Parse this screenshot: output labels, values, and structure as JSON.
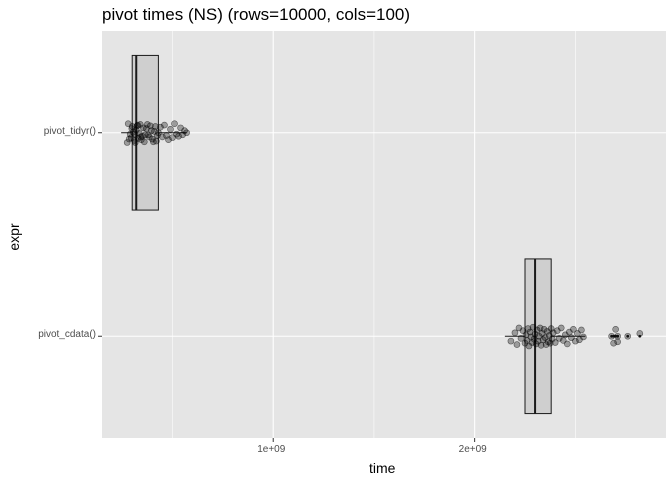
{
  "chart_data": {
    "type": "boxplot",
    "title": "pivot times (NS) (rows=10000, cols=100)",
    "xlabel": "time",
    "ylabel": "expr",
    "xlim": [
      150000000,
      2950000000
    ],
    "x_ticks": [
      {
        "value": 1000000000,
        "label": "1e+09"
      },
      {
        "value": 2000000000,
        "label": "2e+09"
      }
    ],
    "grid": true,
    "categories": [
      "pivot_tidyr()",
      "pivot_cdata()"
    ],
    "series": [
      {
        "category": "pivot_tidyr()",
        "box": {
          "whisker_low": 245000000,
          "q1": 300000000,
          "median": 320000000,
          "q3": 430000000,
          "whisker_high": 570000000
        },
        "points": [
          [
            275000000,
            0.14
          ],
          [
            290000000,
            0.02
          ],
          [
            300000000,
            -0.09
          ],
          [
            310000000,
            0.11
          ],
          [
            320000000,
            -0.04
          ],
          [
            330000000,
            0.08
          ],
          [
            340000000,
            -0.12
          ],
          [
            350000000,
            0.05
          ],
          [
            360000000,
            0.13
          ],
          [
            370000000,
            -0.06
          ],
          [
            380000000,
            0.03
          ],
          [
            390000000,
            -0.1
          ],
          [
            400000000,
            0.09
          ],
          [
            410000000,
            -0.02
          ],
          [
            420000000,
            0.12
          ],
          [
            430000000,
            0.0
          ],
          [
            440000000,
            -0.08
          ],
          [
            450000000,
            0.06
          ],
          [
            460000000,
            -0.11
          ],
          [
            470000000,
            0.04
          ],
          [
            480000000,
            0.1
          ],
          [
            490000000,
            -0.05
          ],
          [
            500000000,
            0.07
          ],
          [
            510000000,
            -0.13
          ],
          [
            520000000,
            0.02
          ],
          [
            530000000,
            0.05
          ],
          [
            540000000,
            -0.07
          ],
          [
            550000000,
            0.03
          ],
          [
            560000000,
            -0.03
          ],
          [
            570000000,
            0.0
          ],
          [
            280000000,
            -0.13
          ],
          [
            295000000,
            0.07
          ],
          [
            305000000,
            -0.01
          ],
          [
            315000000,
            0.14
          ],
          [
            325000000,
            -0.1
          ],
          [
            335000000,
            0.01
          ],
          [
            345000000,
            0.1
          ],
          [
            355000000,
            -0.07
          ],
          [
            365000000,
            0.03
          ],
          [
            375000000,
            -0.12
          ],
          [
            385000000,
            0.06
          ],
          [
            395000000,
            -0.03
          ],
          [
            405000000,
            0.13
          ],
          [
            415000000,
            -0.09
          ],
          [
            425000000,
            0.04
          ],
          [
            285000000,
            0.09
          ],
          [
            298000000,
            -0.06
          ],
          [
            312000000,
            0.02
          ],
          [
            327000000,
            -0.11
          ],
          [
            342000000,
            0.06
          ]
        ],
        "outliers": []
      },
      {
        "category": "pivot_cdata()",
        "box": {
          "whisker_low": 2150000000,
          "q1": 2250000000,
          "median": 2300000000,
          "q3": 2380000000,
          "whisker_high": 2550000000
        },
        "points": [
          [
            2180000000,
            0.07
          ],
          [
            2200000000,
            -0.05
          ],
          [
            2210000000,
            0.12
          ],
          [
            2220000000,
            -0.12
          ],
          [
            2230000000,
            0.03
          ],
          [
            2240000000,
            -0.08
          ],
          [
            2250000000,
            0.1
          ],
          [
            2255000000,
            -0.02
          ],
          [
            2260000000,
            0.06
          ],
          [
            2265000000,
            -0.11
          ],
          [
            2270000000,
            0.14
          ],
          [
            2275000000,
            -0.06
          ],
          [
            2280000000,
            0.01
          ],
          [
            2285000000,
            0.09
          ],
          [
            2290000000,
            -0.13
          ],
          [
            2295000000,
            0.04
          ],
          [
            2300000000,
            -0.03
          ],
          [
            2305000000,
            0.11
          ],
          [
            2310000000,
            -0.09
          ],
          [
            2315000000,
            0.07
          ],
          [
            2320000000,
            0.0
          ],
          [
            2325000000,
            -0.12
          ],
          [
            2330000000,
            0.13
          ],
          [
            2335000000,
            -0.04
          ],
          [
            2340000000,
            0.05
          ],
          [
            2345000000,
            -0.1
          ],
          [
            2350000000,
            0.02
          ],
          [
            2355000000,
            0.12
          ],
          [
            2360000000,
            -0.07
          ],
          [
            2365000000,
            0.08
          ],
          [
            2370000000,
            -0.01
          ],
          [
            2375000000,
            0.1
          ],
          [
            2380000000,
            -0.11
          ],
          [
            2385000000,
            0.04
          ],
          [
            2390000000,
            -0.05
          ],
          [
            2400000000,
            0.09
          ],
          [
            2410000000,
            -0.08
          ],
          [
            2420000000,
            0.03
          ],
          [
            2430000000,
            -0.12
          ],
          [
            2440000000,
            0.06
          ],
          [
            2450000000,
            -0.02
          ],
          [
            2460000000,
            0.11
          ],
          [
            2470000000,
            -0.06
          ],
          [
            2480000000,
            0.02
          ],
          [
            2490000000,
            -0.1
          ],
          [
            2500000000,
            0.07
          ],
          [
            2510000000,
            -0.04
          ],
          [
            2520000000,
            0.05
          ],
          [
            2530000000,
            -0.09
          ],
          [
            2540000000,
            0.01
          ]
        ],
        "outliers": [
          [
            2680000000,
            0.0
          ],
          [
            2700000000,
            -0.1
          ],
          [
            2710000000,
            0.08
          ],
          [
            2760000000,
            0.0
          ],
          [
            2820000000,
            -0.04
          ],
          [
            2710000000,
            0.0
          ],
          [
            2690000000,
            0.1
          ]
        ]
      }
    ]
  }
}
